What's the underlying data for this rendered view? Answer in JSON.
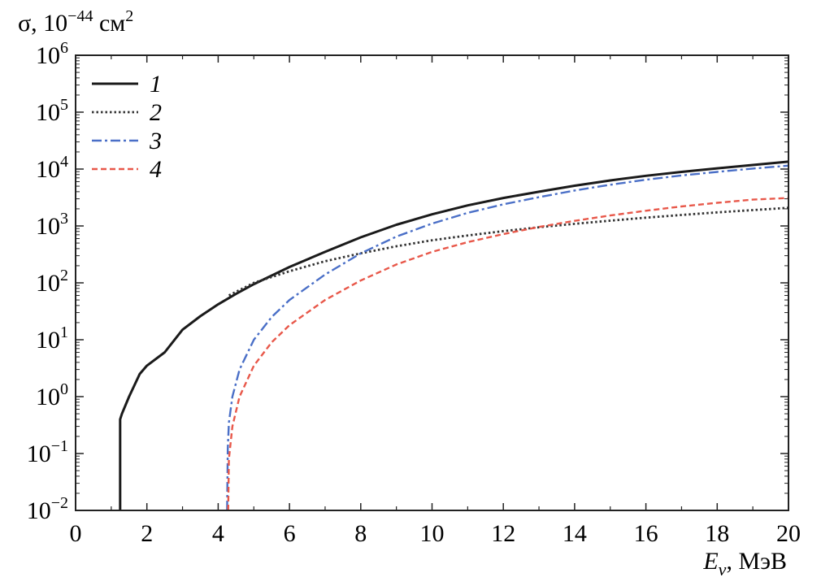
{
  "chart_data": {
    "type": "line",
    "title": "",
    "ylabel": {
      "symbol": "σ, 10",
      "exponent": "−44",
      "unit": " см",
      "unit_exponent": "2"
    },
    "xlabel": {
      "symbol": "E",
      "subscript": "ν",
      "unit": ", МэВ"
    },
    "xlim": [
      0,
      20
    ],
    "ylim_log10": [
      -2,
      6
    ],
    "y_scale": "log",
    "grid": false,
    "legend_position": "top-left",
    "x_ticks": [
      "0",
      "2",
      "4",
      "6",
      "8",
      "10",
      "12",
      "14",
      "16",
      "18",
      "20"
    ],
    "y_ticks": [
      {
        "base": "10",
        "exp": "−2",
        "value": -2
      },
      {
        "base": "10",
        "exp": "−1",
        "value": -1
      },
      {
        "base": "10",
        "exp": "0",
        "value": 0
      },
      {
        "base": "10",
        "exp": "1",
        "value": 1
      },
      {
        "base": "10",
        "exp": "2",
        "value": 2
      },
      {
        "base": "10",
        "exp": "3",
        "value": 3
      },
      {
        "base": "10",
        "exp": "4",
        "value": 4
      },
      {
        "base": "10",
        "exp": "5",
        "value": 5
      },
      {
        "base": "10",
        "exp": "6",
        "value": 6
      }
    ],
    "series": [
      {
        "name": "1",
        "color": "#1a1a1a",
        "style": "solid",
        "points": [
          [
            1.25,
            0.01
          ],
          [
            1.25,
            0.4
          ],
          [
            1.3,
            0.5
          ],
          [
            1.5,
            1
          ],
          [
            1.8,
            2.5
          ],
          [
            2,
            3.5
          ],
          [
            2.5,
            6
          ],
          [
            3,
            15
          ],
          [
            3.5,
            26
          ],
          [
            4,
            42
          ],
          [
            4.5,
            64
          ],
          [
            5,
            95
          ],
          [
            6,
            190
          ],
          [
            7,
            350
          ],
          [
            8,
            630
          ],
          [
            9,
            1050
          ],
          [
            10,
            1600
          ],
          [
            11,
            2300
          ],
          [
            12,
            3100
          ],
          [
            13,
            4000
          ],
          [
            14,
            5100
          ],
          [
            15,
            6300
          ],
          [
            16,
            7600
          ],
          [
            17,
            8900
          ],
          [
            18,
            10300
          ],
          [
            19,
            11800
          ],
          [
            20,
            13500
          ]
        ]
      },
      {
        "name": "2",
        "color": "#333333",
        "style": "dotted",
        "points": [
          [
            4.3,
            60
          ],
          [
            5,
            100
          ],
          [
            6,
            160
          ],
          [
            7,
            240
          ],
          [
            8,
            330
          ],
          [
            9,
            440
          ],
          [
            10,
            560
          ],
          [
            11,
            680
          ],
          [
            12,
            810
          ],
          [
            13,
            950
          ],
          [
            14,
            1090
          ],
          [
            15,
            1240
          ],
          [
            16,
            1400
          ],
          [
            17,
            1560
          ],
          [
            18,
            1730
          ],
          [
            19,
            1900
          ],
          [
            20,
            2080
          ]
        ]
      },
      {
        "name": "3",
        "color": "#4a6fc7",
        "style": "dashdot",
        "points": [
          [
            4.25,
            0.01
          ],
          [
            4.27,
            0.12
          ],
          [
            4.3,
            0.35
          ],
          [
            4.4,
            1
          ],
          [
            4.6,
            3
          ],
          [
            5,
            10
          ],
          [
            5.5,
            25
          ],
          [
            6,
            50
          ],
          [
            7,
            140
          ],
          [
            8,
            330
          ],
          [
            9,
            650
          ],
          [
            10,
            1100
          ],
          [
            11,
            1700
          ],
          [
            12,
            2400
          ],
          [
            13,
            3200
          ],
          [
            14,
            4200
          ],
          [
            15,
            5300
          ],
          [
            16,
            6500
          ],
          [
            17,
            7700
          ],
          [
            18,
            8900
          ],
          [
            19,
            10200
          ],
          [
            20,
            11500
          ]
        ]
      },
      {
        "name": "4",
        "color": "#e8584a",
        "style": "dashed",
        "points": [
          [
            4.28,
            0.01
          ],
          [
            4.3,
            0.08
          ],
          [
            4.4,
            0.3
          ],
          [
            4.6,
            1
          ],
          [
            5,
            3.5
          ],
          [
            5.5,
            9
          ],
          [
            6,
            18
          ],
          [
            7,
            50
          ],
          [
            8,
            110
          ],
          [
            9,
            210
          ],
          [
            10,
            350
          ],
          [
            11,
            520
          ],
          [
            12,
            720
          ],
          [
            13,
            960
          ],
          [
            14,
            1230
          ],
          [
            15,
            1530
          ],
          [
            16,
            1850
          ],
          [
            17,
            2200
          ],
          [
            18,
            2550
          ],
          [
            19,
            2900
          ],
          [
            20,
            3100
          ]
        ]
      }
    ]
  }
}
